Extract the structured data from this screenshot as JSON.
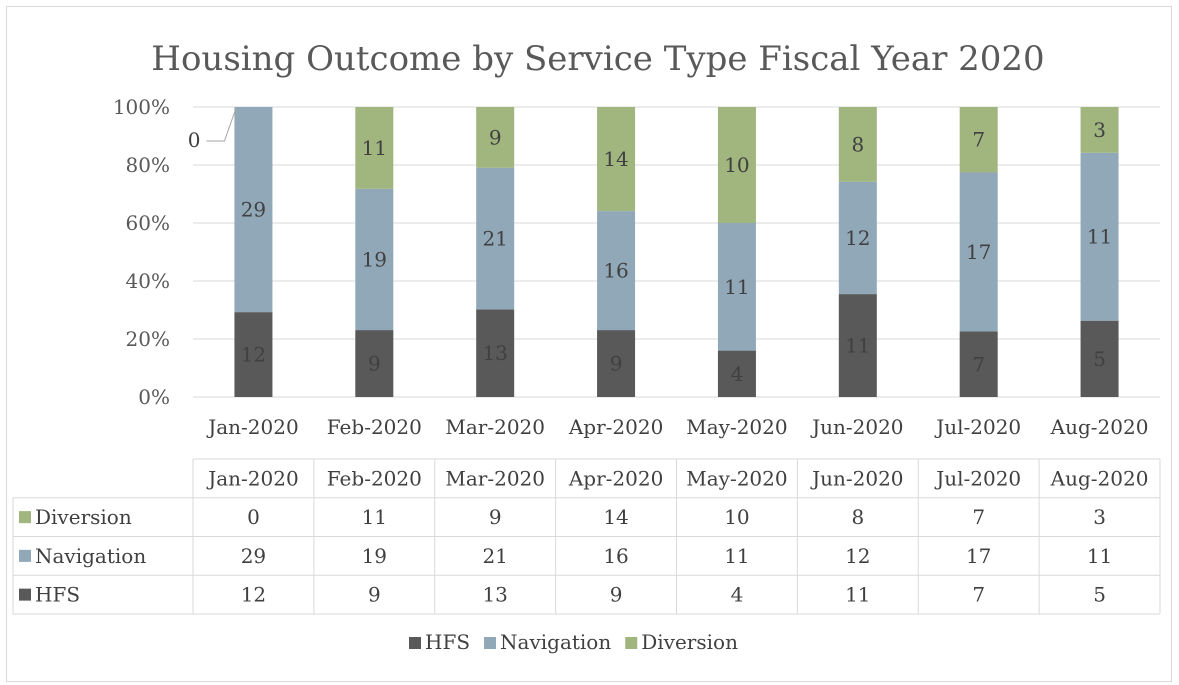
{
  "chart_data": {
    "type": "bar",
    "stacked": "percent",
    "title": "Housing Outcome by Service Type Fiscal Year 2020",
    "categories": [
      "Jan-2020",
      "Feb-2020",
      "Mar-2020",
      "Apr-2020",
      "May-2020",
      "Jun-2020",
      "Jul-2020",
      "Aug-2020"
    ],
    "series": [
      {
        "name": "HFS",
        "color": "#595959",
        "values": [
          12,
          9,
          13,
          9,
          4,
          11,
          7,
          5
        ]
      },
      {
        "name": "Navigation",
        "color": "#91a8b8",
        "values": [
          29,
          19,
          21,
          16,
          11,
          12,
          17,
          11
        ]
      },
      {
        "name": "Diversion",
        "color": "#a1b57f",
        "values": [
          0,
          11,
          9,
          14,
          10,
          8,
          7,
          3
        ]
      }
    ],
    "ylim": [
      0,
      100
    ],
    "yticks": [
      "0%",
      "20%",
      "40%",
      "60%",
      "80%",
      "100%"
    ],
    "grid": true,
    "data_table": true,
    "table_row_order": [
      "Diversion",
      "Navigation",
      "HFS"
    ],
    "legend_position": "bottom"
  }
}
